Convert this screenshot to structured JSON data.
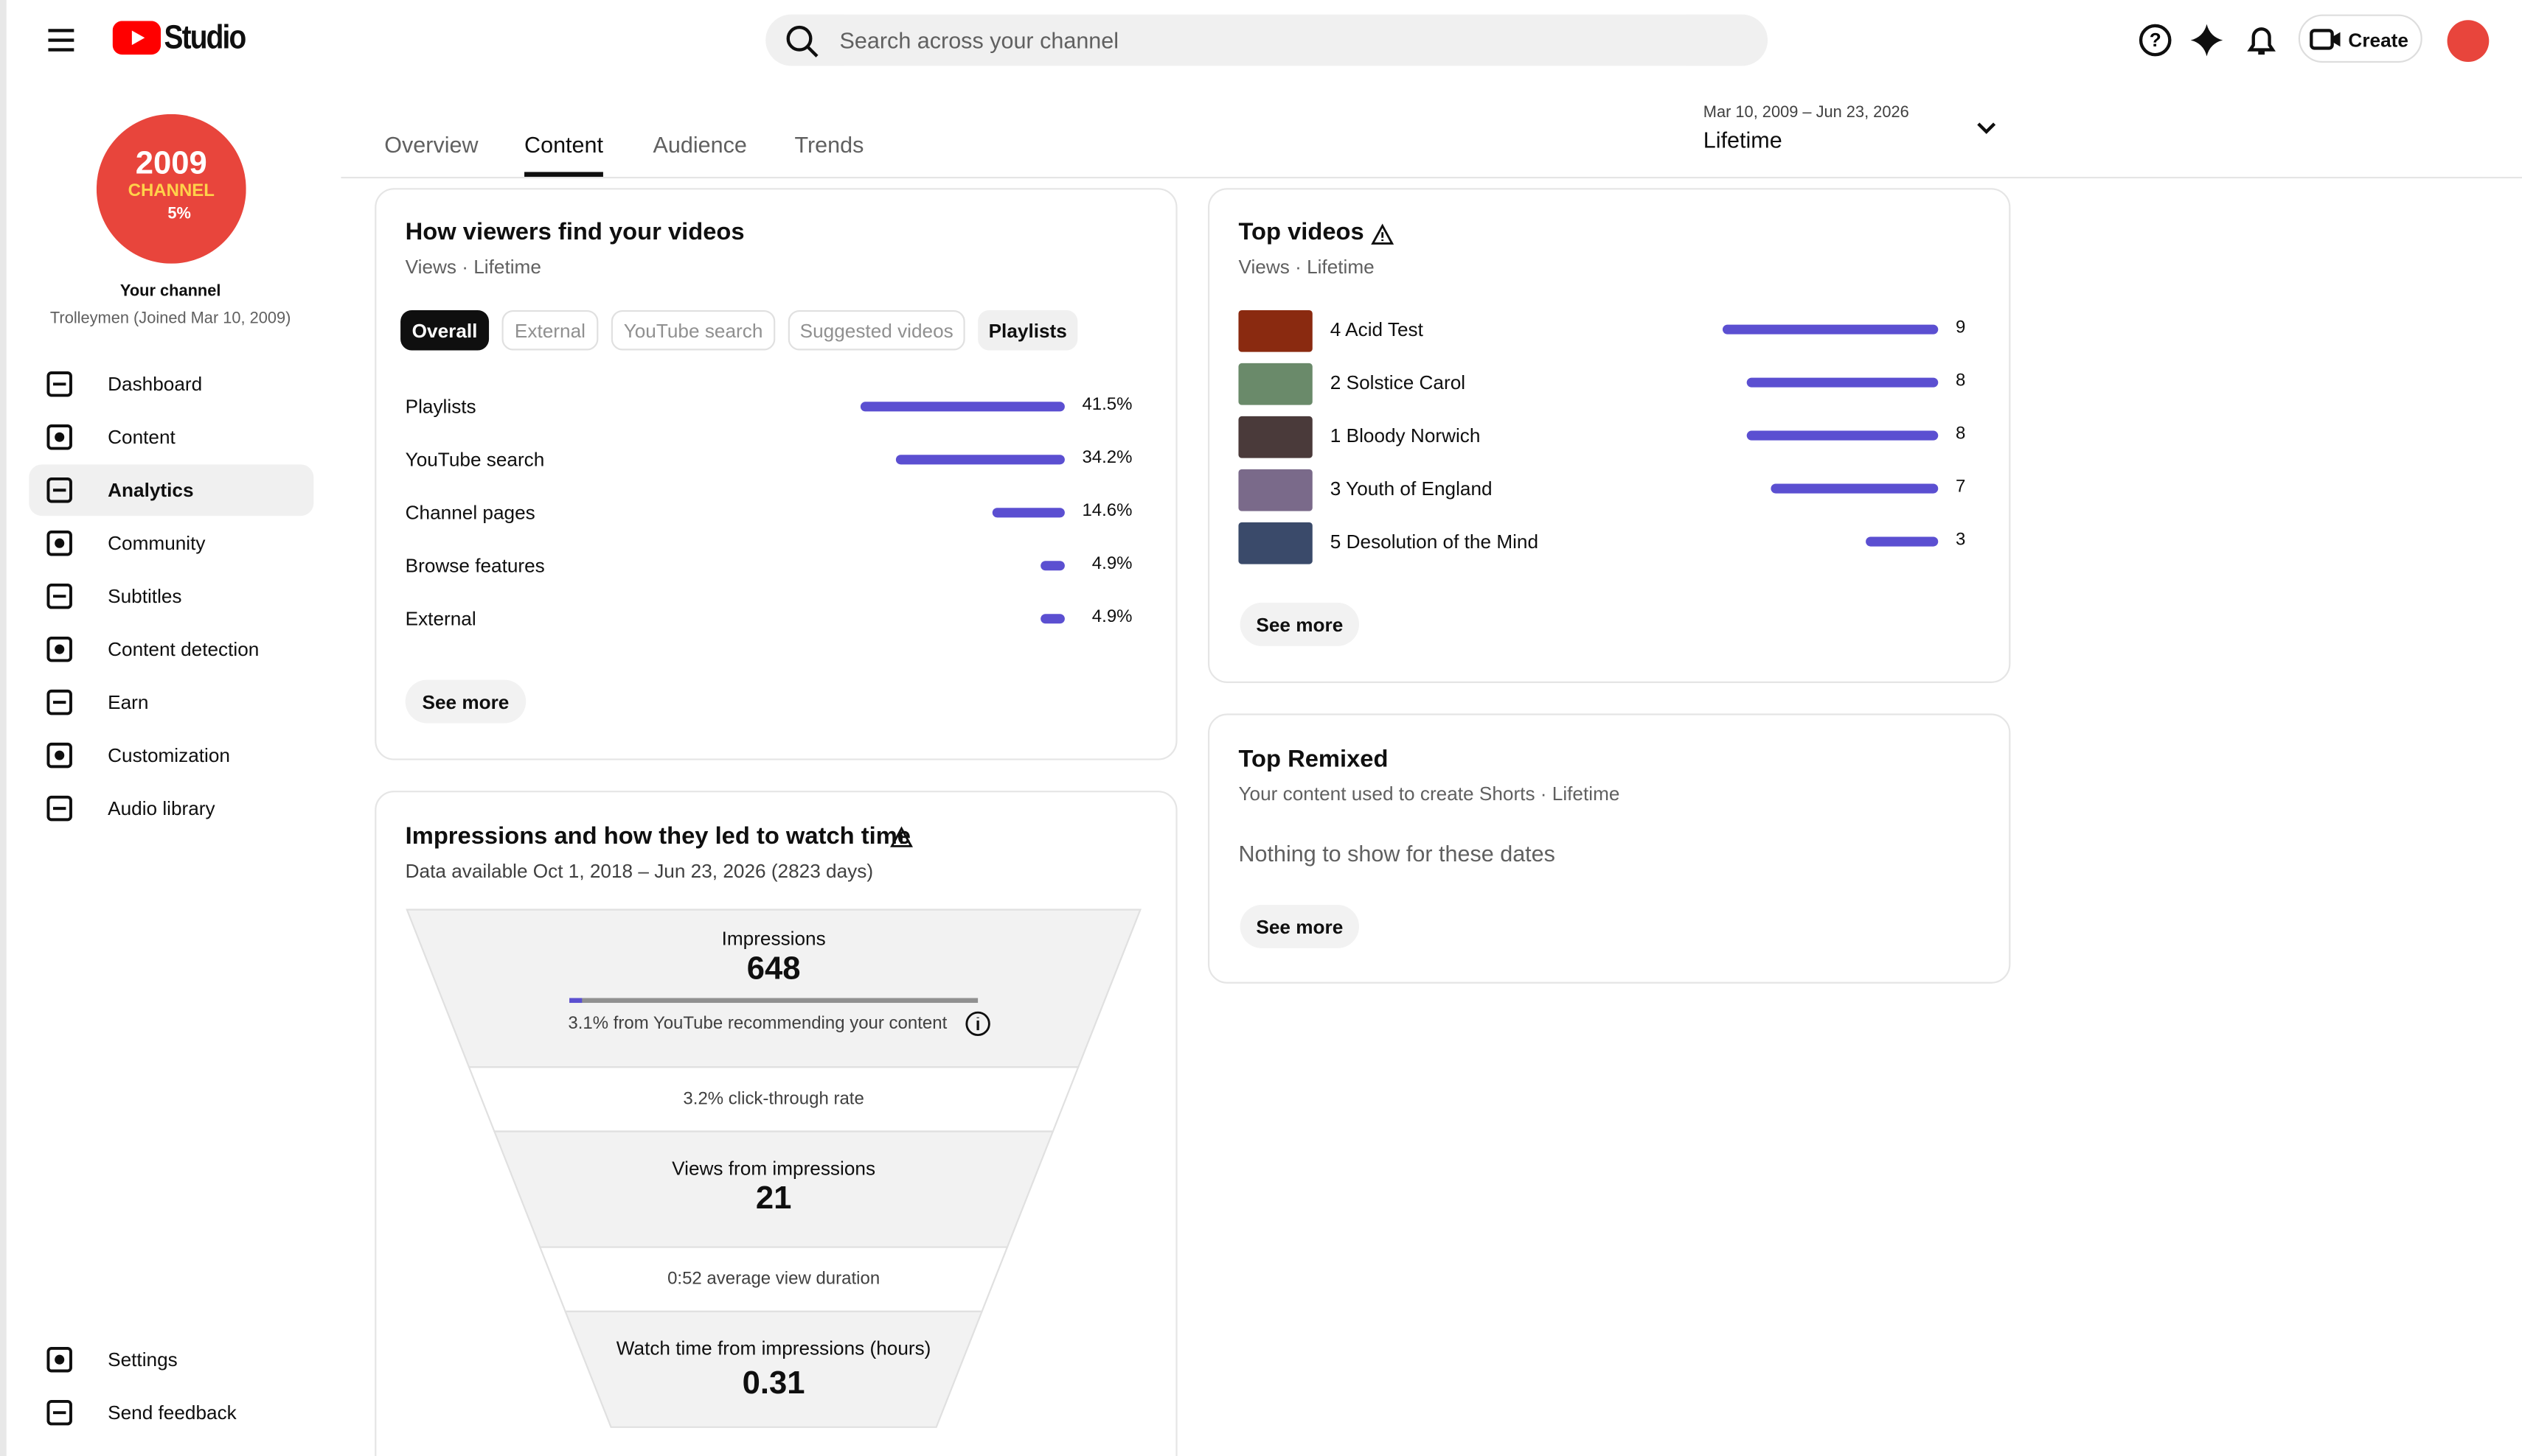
{
  "header": {
    "app_name": "Studio",
    "search_placeholder": "Search across your channel",
    "create_label": "Create"
  },
  "sidebar": {
    "avatar_lines": [
      "2009",
      "CHANNEL",
      "5%"
    ],
    "channel_label": "Your channel",
    "channel_name": "Trolleymen (Joined Mar 10, 2009)",
    "nav": [
      "Dashboard",
      "Content",
      "Analytics",
      "Community",
      "Subtitles",
      "Content detection",
      "Earn",
      "Customization",
      "Audio library"
    ],
    "active": "Analytics",
    "footer_nav": [
      "Settings",
      "Send feedback"
    ]
  },
  "tabs": {
    "items": [
      "Overview",
      "Content",
      "Audience",
      "Trends"
    ],
    "active": "Content"
  },
  "date_range": {
    "dates": "Mar 10, 2009 – Jun 23, 2026",
    "period": "Lifetime"
  },
  "traffic_sources": {
    "title": "How viewers find your videos",
    "subtitle": "Views · Lifetime",
    "chips": [
      "Overall",
      "External",
      "YouTube search",
      "Suggested videos",
      "Playlists"
    ],
    "categories": [
      "Playlists",
      "YouTube search",
      "Channel pages",
      "Browse features",
      "External"
    ],
    "values": [
      41.5,
      34.2,
      14.6,
      4.9,
      4.9
    ],
    "value_labels": [
      "41.5%",
      "34.2%",
      "14.6%",
      "4.9%",
      "4.9%"
    ],
    "color": "#5b4fd1",
    "see_more": "See more"
  },
  "impressions_funnel": {
    "title": "Impressions and how they led to watch time",
    "subtitle": "Data available Oct 1, 2018 – Jun 23, 2026 (2823 days)",
    "impressions": {
      "label": "Impressions",
      "value": 648
    },
    "recommended": {
      "value": 3.1,
      "label": "3.1% from YouTube recommending your content"
    },
    "ctr": "3.2% click-through rate",
    "views": {
      "label": "Views from impressions",
      "value": 21
    },
    "avd": "0:52 average view duration",
    "watch_time": {
      "label": "Watch time from impressions (hours)",
      "value": 0.31
    }
  },
  "top_videos": {
    "title": "Top videos",
    "subtitle": "Views · Lifetime",
    "categories": [
      "4 Acid Test",
      "2 Solstice Carol",
      "1 Bloody Norwich",
      "3 Youth of England",
      "5 Desolution of the Mind"
    ],
    "values": [
      9,
      8,
      8,
      7,
      3
    ],
    "color": "#5b4fd1",
    "see_more": "See more"
  },
  "top_remixed": {
    "title": "Top Remixed",
    "subtitle": "Your content used to create Shorts · Lifetime",
    "empty": "Nothing to show for these dates",
    "see_more": "See more"
  }
}
